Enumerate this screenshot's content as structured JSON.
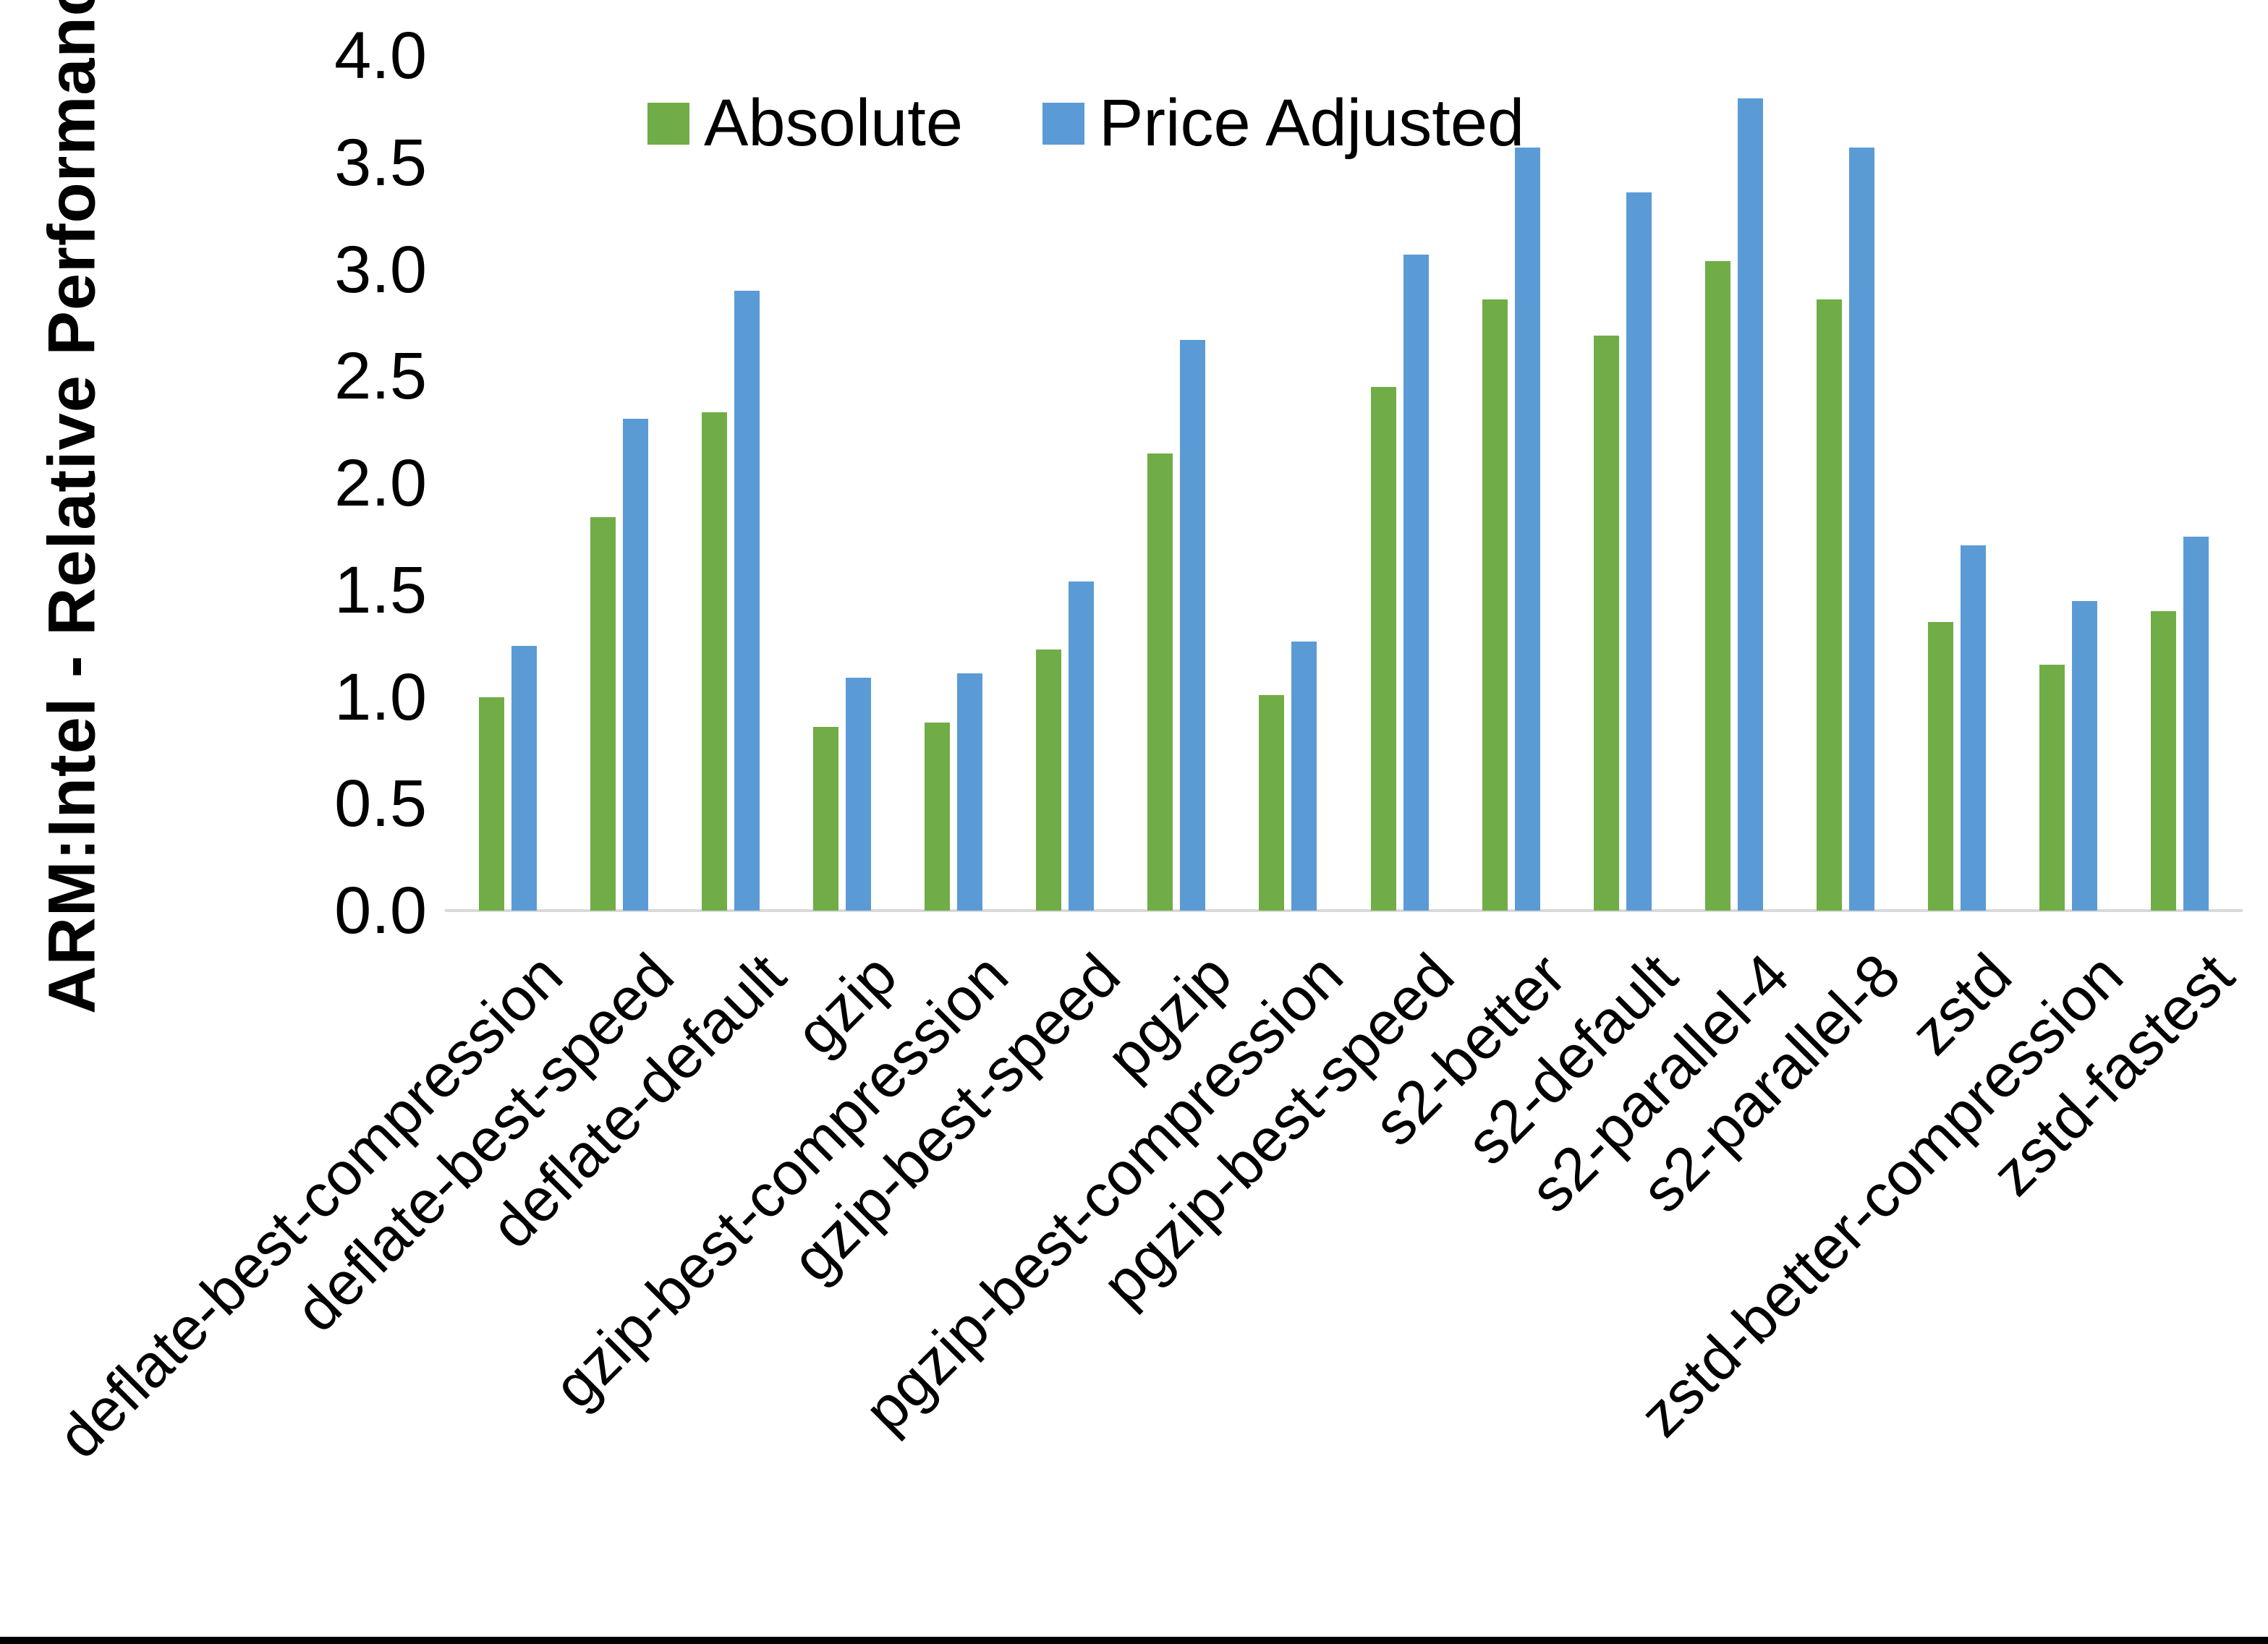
{
  "chart_data": {
    "type": "bar",
    "title": "",
    "xlabel": "",
    "ylabel": "ARM:Intel - Relative Performance",
    "ylim": [
      0.0,
      4.0
    ],
    "ytick_step": 0.5,
    "ytick_labels": [
      "0.0",
      "0.5",
      "1.0",
      "1.5",
      "2.0",
      "2.5",
      "3.0",
      "3.5",
      "4.0"
    ],
    "grid": false,
    "legend_position": "top",
    "categories": [
      "deflate-best-compression",
      "deflate-best-speed",
      "deflate-default",
      "gzip",
      "gzip-best-compression",
      "gzip-best-speed",
      "pgzip",
      "pgzip-best-compression",
      "pgzip-best-speed",
      "s2-better",
      "s2-default",
      "s2-parallel-4",
      "s2-parallel-8",
      "zstd",
      "zstd-better-compression",
      "zstd-fastest"
    ],
    "series": [
      {
        "name": "Absolute",
        "color": "#70AD47",
        "values": [
          1.0,
          1.84,
          2.33,
          0.86,
          0.88,
          1.22,
          2.14,
          1.01,
          2.45,
          2.86,
          2.69,
          3.04,
          2.86,
          1.35,
          1.15,
          1.4
        ]
      },
      {
        "name": "Price Adjusted",
        "color": "#5B9BD5",
        "values": [
          1.24,
          2.3,
          2.9,
          1.09,
          1.11,
          1.54,
          2.67,
          1.26,
          3.07,
          3.57,
          3.36,
          3.8,
          3.57,
          1.71,
          1.45,
          1.75
        ]
      }
    ],
    "axis_line_color": "#D9D9D9",
    "text_color": "#000000"
  }
}
